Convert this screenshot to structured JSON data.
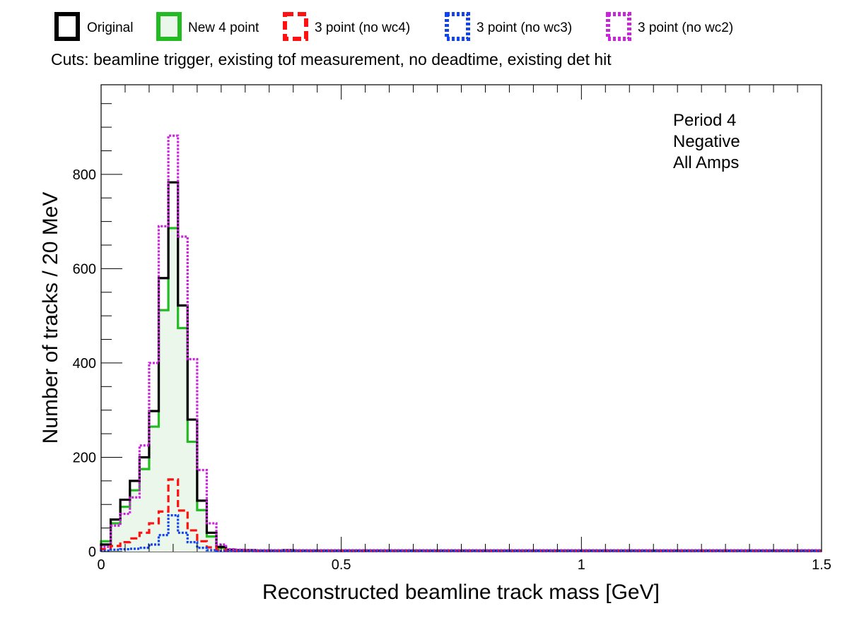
{
  "chart_data": {
    "type": "histogram-step",
    "title": "",
    "cuts_label": "Cuts: beamline trigger, existing tof measurement, no deadtime, existing det hit",
    "xlabel": "Reconstructed beamline track mass [GeV]",
    "ylabel": "Number of tracks / 20 MeV",
    "annotations": [
      "Period 4",
      "Negative",
      "All Amps"
    ],
    "xlim": [
      0,
      1.5
    ],
    "ylim": [
      0,
      990
    ],
    "bin_width": 0.02,
    "x_ticks": [
      0,
      0.5,
      1,
      1.5
    ],
    "x_tick_labels": [
      "0",
      "0.5",
      "1",
      "1.5"
    ],
    "y_ticks": [
      0,
      200,
      400,
      600,
      800
    ],
    "y_tick_labels": [
      "0",
      "200",
      "400",
      "600",
      "800"
    ],
    "grid": false,
    "legend_position": "top",
    "series": [
      {
        "name": "Original",
        "color": "#000000",
        "style": "solid",
        "fill": null,
        "values": [
          15,
          68,
          110,
          150,
          200,
          298,
          580,
          783,
          522,
          280,
          108,
          40,
          10,
          4,
          3,
          3,
          2,
          2,
          2,
          3,
          2
        ]
      },
      {
        "name": "New 4 point",
        "color": "#22bb22",
        "style": "solid",
        "fill": "#eaf7ea",
        "values": [
          22,
          60,
          95,
          130,
          175,
          265,
          512,
          686,
          474,
          233,
          88,
          32,
          8,
          3,
          2,
          2,
          2,
          2,
          2,
          2,
          2
        ]
      },
      {
        "name": "3 point (no wc4)",
        "color": "#ff1111",
        "style": "dashed",
        "fill": null,
        "values": [
          5,
          12,
          20,
          28,
          40,
          60,
          85,
          153,
          87,
          45,
          22,
          9,
          3,
          1,
          1,
          1,
          1,
          1,
          1,
          1,
          1
        ]
      },
      {
        "name": "3 point (no wc3)",
        "color": "#1144ee",
        "style": "dotted",
        "fill": null,
        "values": [
          2,
          4,
          5,
          6,
          8,
          15,
          35,
          77,
          40,
          20,
          8,
          3,
          1,
          1,
          1,
          1,
          1,
          1,
          1,
          1,
          1
        ]
      },
      {
        "name": "3 point (no wc2)",
        "color": "#cc22dd",
        "style": "dotted",
        "fill": null,
        "values": [
          10,
          55,
          80,
          115,
          225,
          400,
          690,
          882,
          668,
          408,
          173,
          60,
          15,
          5,
          4,
          3,
          3,
          3,
          3,
          3,
          3
        ]
      }
    ]
  }
}
